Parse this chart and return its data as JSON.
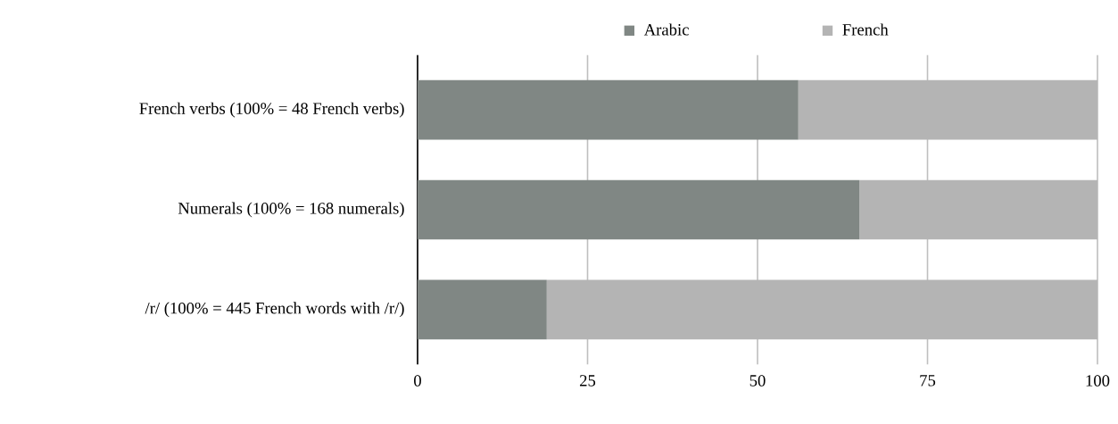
{
  "chart_data": {
    "type": "bar",
    "orientation": "horizontal",
    "stacked": true,
    "categories": [
      "French verbs (100% = 48 French verbs)",
      "Numerals (100% = 168 numerals)",
      "/r/ (100% = 445 French words with /r/)"
    ],
    "series": [
      {
        "name": "Arabic",
        "color": "#808784",
        "values": [
          56,
          65,
          19
        ]
      },
      {
        "name": "French",
        "color": "#b4b4b4",
        "values": [
          44,
          35,
          81
        ]
      }
    ],
    "xlim": [
      0,
      100
    ],
    "xticks": [
      0,
      25,
      50,
      75,
      100
    ],
    "grid": "x",
    "legend": "top"
  }
}
